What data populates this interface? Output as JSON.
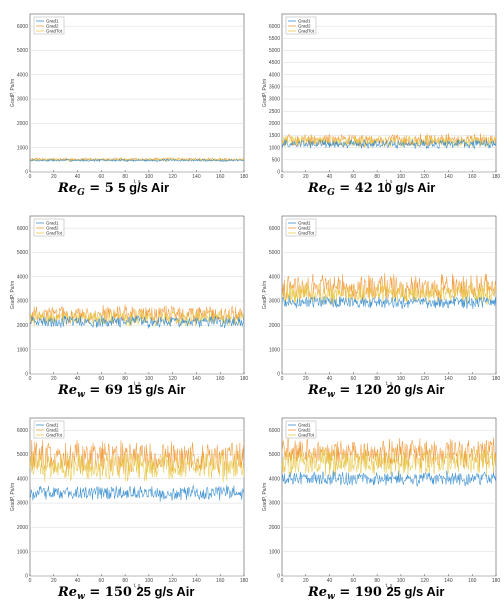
{
  "chart_data": [
    {
      "type": "line",
      "caption": {
        "re": "Re",
        "sub": "G",
        "value": "= 5",
        "rest": "5 g/s Air"
      },
      "xlabel": "t, s",
      "ylabel": "GradP, Pa/m",
      "xlim": [
        0,
        180
      ],
      "ylim": [
        0,
        6500
      ],
      "xticks": [
        0,
        20,
        40,
        60,
        80,
        100,
        120,
        140,
        160,
        180
      ],
      "yticks": [
        0,
        1000,
        2000,
        3000,
        4000,
        5000,
        6000
      ],
      "grid": true,
      "legend": "top-left",
      "series": [
        {
          "name": "Grad1",
          "color": "#3a8fd0",
          "mean": 480,
          "amp": 40
        },
        {
          "name": "Grad2",
          "color": "#f09a3a",
          "mean": 520,
          "amp": 50
        },
        {
          "name": "GradTot",
          "color": "#e8c84a",
          "mean": 500,
          "amp": 45
        }
      ]
    },
    {
      "type": "line",
      "caption": {
        "re": "Re",
        "sub": "G",
        "value": "= 42",
        "rest": "10 g/s Air"
      },
      "xlabel": "t, s",
      "ylabel": "GradP, Pa/m",
      "xlim": [
        0,
        180
      ],
      "ylim": [
        0,
        6500
      ],
      "xticks": [
        0,
        20,
        40,
        60,
        80,
        100,
        120,
        140,
        160,
        180
      ],
      "yticks": [
        0,
        500,
        1000,
        1500,
        2000,
        2500,
        3000,
        3500,
        4000,
        4500,
        5000,
        5500,
        6000
      ],
      "grid": true,
      "legend": "top-left",
      "series": [
        {
          "name": "Grad1",
          "color": "#3a8fd0",
          "mean": 1150,
          "amp": 150
        },
        {
          "name": "Grad2",
          "color": "#f09a3a",
          "mean": 1300,
          "amp": 220
        },
        {
          "name": "GradTot",
          "color": "#e8c84a",
          "mean": 1250,
          "amp": 200
        }
      ]
    },
    {
      "type": "line",
      "caption": {
        "re": "Re",
        "sub": "w",
        "value": "= 69",
        "rest": "15 g/s Air"
      },
      "xlabel": "t, s",
      "ylabel": "GradP, Pa/m",
      "xlim": [
        0,
        180
      ],
      "ylim": [
        0,
        6500
      ],
      "xticks": [
        0,
        20,
        40,
        60,
        80,
        100,
        120,
        140,
        160,
        180
      ],
      "yticks": [
        0,
        1000,
        2000,
        3000,
        4000,
        5000,
        6000
      ],
      "grid": true,
      "legend": "top-left",
      "series": [
        {
          "name": "Grad1",
          "color": "#3a8fd0",
          "mean": 2150,
          "amp": 200
        },
        {
          "name": "Grad2",
          "color": "#f09a3a",
          "mean": 2450,
          "amp": 300
        },
        {
          "name": "GradTot",
          "color": "#e8c84a",
          "mean": 2300,
          "amp": 260
        }
      ]
    },
    {
      "type": "line",
      "caption": {
        "re": "Re",
        "sub": "w",
        "value": "= 120",
        "rest": "20 g/s Air"
      },
      "xlabel": "t, s",
      "ylabel": "GradP, Pa/m",
      "xlim": [
        0,
        180
      ],
      "ylim": [
        0,
        6500
      ],
      "xticks": [
        0,
        20,
        40,
        60,
        80,
        100,
        120,
        140,
        160,
        180
      ],
      "yticks": [
        0,
        1000,
        2000,
        3000,
        4000,
        5000,
        6000
      ],
      "grid": true,
      "legend": "top-left",
      "series": [
        {
          "name": "Grad1",
          "color": "#3a8fd0",
          "mean": 2950,
          "amp": 200
        },
        {
          "name": "Grad2",
          "color": "#f09a3a",
          "mean": 3550,
          "amp": 450
        },
        {
          "name": "GradTot",
          "color": "#e8c84a",
          "mean": 3300,
          "amp": 380
        }
      ]
    },
    {
      "type": "line",
      "caption": {
        "re": "Re",
        "sub": "w",
        "value": "= 150",
        "rest": "25 g/s Air"
      },
      "xlabel": "t, s",
      "ylabel": "GradP, Pa/m",
      "xlim": [
        0,
        180
      ],
      "ylim": [
        0,
        6500
      ],
      "xticks": [
        0,
        20,
        40,
        60,
        80,
        100,
        120,
        140,
        160,
        180
      ],
      "yticks": [
        0,
        1000,
        2000,
        3000,
        4000,
        5000,
        6000
      ],
      "grid": true,
      "legend": "top-left",
      "series": [
        {
          "name": "Grad1",
          "color": "#3a8fd0",
          "mean": 3400,
          "amp": 250
        },
        {
          "name": "Grad2",
          "color": "#f09a3a",
          "mean": 4900,
          "amp": 550
        },
        {
          "name": "GradTot",
          "color": "#e8c84a",
          "mean": 4500,
          "amp": 500
        }
      ]
    },
    {
      "type": "line",
      "caption": {
        "re": "Re",
        "sub": "w",
        "value": "= 190",
        "rest": "25 g/s Air"
      },
      "xlabel": "t, s",
      "ylabel": "GradP, Pa/m",
      "xlim": [
        0,
        180
      ],
      "ylim": [
        0,
        6500
      ],
      "xticks": [
        0,
        20,
        40,
        60,
        80,
        100,
        120,
        140,
        160,
        180
      ],
      "yticks": [
        0,
        1000,
        2000,
        3000,
        4000,
        5000,
        6000
      ],
      "grid": true,
      "legend": "top-left",
      "series": [
        {
          "name": "Grad1",
          "color": "#3a8fd0",
          "mean": 4000,
          "amp": 250
        },
        {
          "name": "Grad2",
          "color": "#f09a3a",
          "mean": 5050,
          "amp": 500
        },
        {
          "name": "GradTot",
          "color": "#e8c84a",
          "mean": 4700,
          "amp": 450
        }
      ]
    }
  ]
}
